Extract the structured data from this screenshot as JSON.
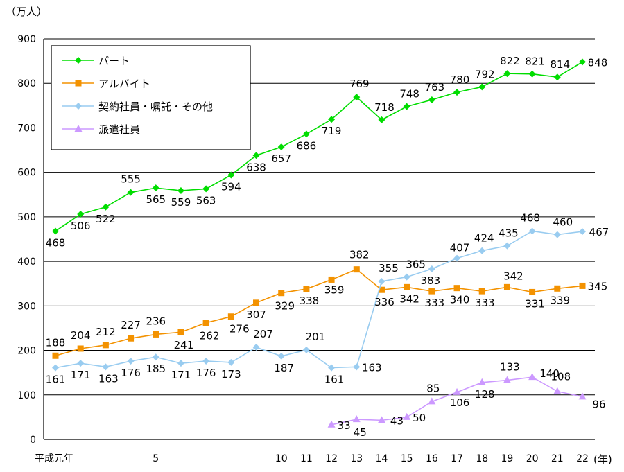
{
  "chart_data": {
    "type": "line",
    "y_unit": "（万人）",
    "x_unit": "(年)",
    "ylim": [
      0,
      900
    ],
    "y_ticks": [
      0,
      100,
      200,
      300,
      400,
      500,
      600,
      700,
      800,
      900
    ],
    "x": [
      1,
      2,
      3,
      4,
      5,
      6,
      7,
      8,
      9,
      10,
      11,
      12,
      13,
      14,
      15,
      16,
      17,
      18,
      19,
      20,
      21,
      22
    ],
    "x_tick_labels": [
      {
        "x": 1,
        "label": "平成元年"
      },
      {
        "x": 5,
        "label": "5"
      },
      {
        "x": 10,
        "label": "10"
      },
      {
        "x": 11,
        "label": "11"
      },
      {
        "x": 12,
        "label": "12"
      },
      {
        "x": 13,
        "label": "13"
      },
      {
        "x": 14,
        "label": "14"
      },
      {
        "x": 15,
        "label": "15"
      },
      {
        "x": 16,
        "label": "16"
      },
      {
        "x": 17,
        "label": "17"
      },
      {
        "x": 18,
        "label": "18"
      },
      {
        "x": 19,
        "label": "19"
      },
      {
        "x": 20,
        "label": "20"
      },
      {
        "x": 21,
        "label": "21"
      },
      {
        "x": 22,
        "label": "22"
      }
    ],
    "grid": "horizontal",
    "legend_position": "top-left",
    "series": [
      {
        "name": "パート",
        "color": "#00dd00",
        "marker": "diamond",
        "values": [
          468,
          506,
          522,
          555,
          565,
          559,
          563,
          594,
          638,
          657,
          686,
          719,
          769,
          718,
          748,
          763,
          780,
          792,
          822,
          821,
          814,
          848
        ]
      },
      {
        "name": "アルバイト",
        "color": "#f39200",
        "marker": "square",
        "values": [
          188,
          204,
          212,
          227,
          236,
          241,
          262,
          276,
          307,
          329,
          338,
          359,
          382,
          336,
          342,
          333,
          340,
          333,
          342,
          331,
          339,
          345
        ]
      },
      {
        "name": "契約社員・嘱託・その他",
        "color": "#99ccf0",
        "marker": "diamond",
        "values": [
          161,
          171,
          163,
          176,
          185,
          171,
          176,
          173,
          207,
          187,
          201,
          161,
          163,
          355,
          365,
          383,
          407,
          424,
          435,
          468,
          460,
          467
        ]
      },
      {
        "name": "派遣社員",
        "color": "#cc99ff",
        "marker": "triangle",
        "values": [
          null,
          null,
          null,
          null,
          null,
          null,
          null,
          null,
          null,
          null,
          null,
          33,
          45,
          43,
          50,
          85,
          106,
          128,
          133,
          140,
          108,
          96
        ]
      }
    ]
  }
}
